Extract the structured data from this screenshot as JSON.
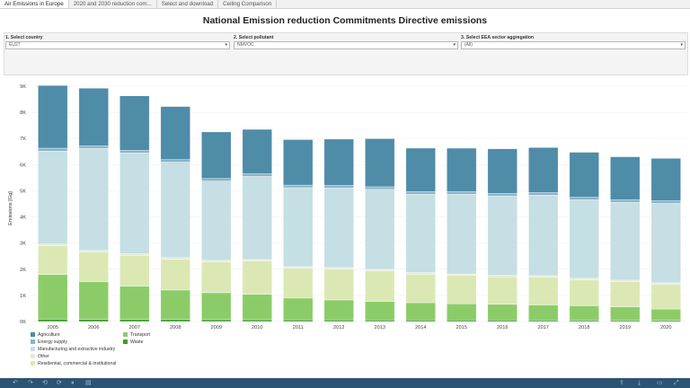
{
  "tabs": [
    "Air Emissions in Europe",
    "2020 and 2030 reduction com...",
    "Select and download",
    "Ceiling Comparison"
  ],
  "title": "National Emission reduction Commitments Directive emissions",
  "filters": [
    {
      "label": "1. Select country",
      "value": "EU27"
    },
    {
      "label": "2. Select pollutant",
      "value": "NMVOC"
    },
    {
      "label": "3. Select EEA sector aggregation",
      "value": "(All)"
    }
  ],
  "chart_data": {
    "type": "bar",
    "stacked": true,
    "ylabel": "Emissions [Gg]",
    "ylim": [
      0,
      9000
    ],
    "yticks": [
      "0K",
      "1K",
      "2K",
      "3K",
      "4K",
      "5K",
      "6K",
      "7K",
      "8K",
      "9K"
    ],
    "categories": [
      "2005",
      "2006",
      "2007",
      "2008",
      "2009",
      "2010",
      "2011",
      "2012",
      "2013",
      "2014",
      "2015",
      "2016",
      "2017",
      "2018",
      "2019",
      "2020"
    ],
    "series": [
      {
        "name": "Waste",
        "color": "#3f9a2c",
        "values": [
          90,
          85,
          80,
          75,
          72,
          70,
          68,
          66,
          64,
          62,
          60,
          58,
          56,
          54,
          52,
          50
        ]
      },
      {
        "name": "Transport",
        "color": "#8ccc68",
        "values": [
          1710,
          1440,
          1270,
          1130,
          1030,
          970,
          830,
          760,
          700,
          660,
          620,
          600,
          580,
          550,
          510,
          430
        ]
      },
      {
        "name": "Residential, commercial & institutional",
        "color": "#dbe8b4",
        "values": [
          1100,
          1140,
          1180,
          1180,
          1180,
          1270,
          1140,
          1180,
          1170,
          1090,
          1080,
          1050,
          1060,
          990,
          960,
          940
        ]
      },
      {
        "name": "Other",
        "color": "#e2ecd9",
        "values": [
          60,
          60,
          60,
          60,
          60,
          60,
          60,
          60,
          60,
          60,
          60,
          60,
          60,
          60,
          60,
          60
        ]
      },
      {
        "name": "Manufacturing and extractive industry",
        "color": "#c5dfe4",
        "values": [
          3560,
          3900,
          3860,
          3650,
          3030,
          3180,
          3020,
          3040,
          3060,
          3000,
          3050,
          3030,
          3080,
          3000,
          2980,
          3040
        ]
      },
      {
        "name": "Energy supply",
        "color": "#89b4c9",
        "values": [
          110,
          100,
          100,
          100,
          100,
          100,
          100,
          100,
          100,
          100,
          100,
          100,
          100,
          100,
          100,
          100
        ]
      },
      {
        "name": "Agriculture",
        "color": "#4f8ca8",
        "values": [
          2400,
          2200,
          2080,
          2030,
          1780,
          1700,
          1740,
          1770,
          1840,
          1660,
          1660,
          1710,
          1720,
          1720,
          1640,
          1620
        ]
      }
    ]
  },
  "legend": [
    {
      "label": "Agriculture",
      "color": "#4f8ca8"
    },
    {
      "label": "Energy supply",
      "color": "#89b4c9"
    },
    {
      "label": "Manufacturing and extractive industry",
      "color": "#c5dfe4"
    },
    {
      "label": "Other",
      "color": "#e2ecd9"
    },
    {
      "label": "Residential, commercial & institutional",
      "color": "#dbe8b4"
    },
    {
      "label": "Transport",
      "color": "#8ccc68"
    },
    {
      "label": "Waste",
      "color": "#3f9a2c"
    }
  ],
  "toolbar": {
    "undo_icon": "undo-icon",
    "redo_icon": "redo-icon",
    "revert_icon": "revert-icon",
    "pause_icon": "pause-icon",
    "download_icon": "download-icon",
    "share_icon": "share-icon",
    "fullscreen_icon": "fullscreen-icon"
  }
}
